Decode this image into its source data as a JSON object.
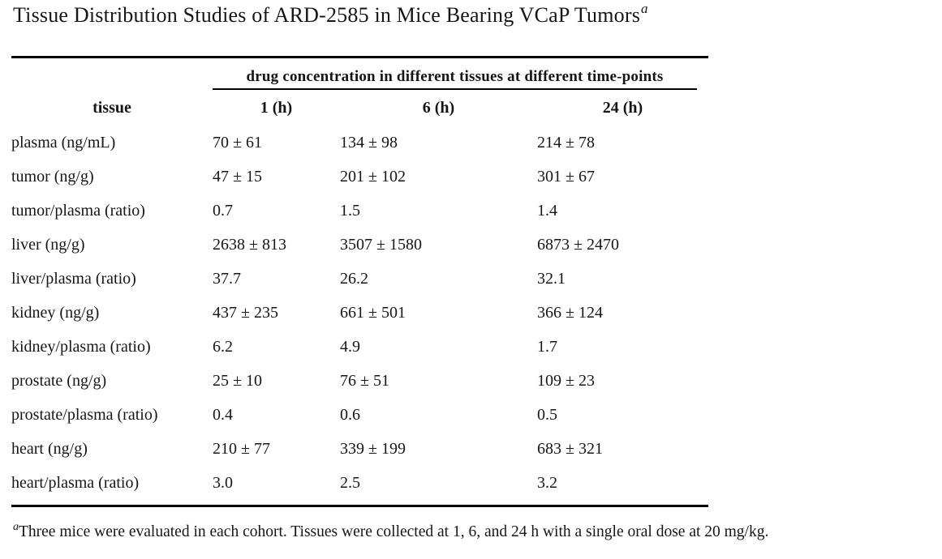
{
  "page": {
    "background": "#ffffff",
    "text_color": "#161616",
    "rule_color": "#000000"
  },
  "title": {
    "text": "Tissue Distribution Studies of ARD-2585 in Mice Bearing VCaP Tumors",
    "footnote_marker": "a"
  },
  "table": {
    "spanning_header": "drug concentration in different tissues at different time-points",
    "columns": [
      "tissue",
      "1 (h)",
      "6 (h)",
      "24 (h)"
    ],
    "rows": [
      {
        "tissue": "plasma (ng/mL)",
        "h1": "70 ± 61",
        "h6": "134 ± 98",
        "h24": "214 ± 78"
      },
      {
        "tissue": "tumor (ng/g)",
        "h1": "47 ± 15",
        "h6": "201 ± 102",
        "h24": "301 ± 67"
      },
      {
        "tissue": "tumor/plasma (ratio)",
        "h1": "0.7",
        "h6": "1.5",
        "h24": "1.4"
      },
      {
        "tissue": "liver (ng/g)",
        "h1": "2638 ± 813",
        "h6": "3507 ± 1580",
        "h24": "6873 ± 2470"
      },
      {
        "tissue": "liver/plasma (ratio)",
        "h1": "37.7",
        "h6": "26.2",
        "h24": "32.1"
      },
      {
        "tissue": "kidney (ng/g)",
        "h1": "437 ± 235",
        "h6": "661 ± 501",
        "h24": "366 ± 124"
      },
      {
        "tissue": "kidney/plasma (ratio)",
        "h1": "6.2",
        "h6": "4.9",
        "h24": "1.7"
      },
      {
        "tissue": "prostate (ng/g)",
        "h1": "25 ± 10",
        "h6": "76 ± 51",
        "h24": "109 ± 23"
      },
      {
        "tissue": "prostate/plasma (ratio)",
        "h1": "0.4",
        "h6": "0.6",
        "h24": "0.5"
      },
      {
        "tissue": "heart (ng/g)",
        "h1": "210 ± 77",
        "h6": "339 ± 199",
        "h24": "683 ± 321"
      },
      {
        "tissue": "heart/plasma (ratio)",
        "h1": "3.0",
        "h6": "2.5",
        "h24": "3.2"
      }
    ]
  },
  "footnote": {
    "marker": "a",
    "text": "Three mice were evaluated in each cohort. Tissues were collected at 1, 6, and 24 h with a single oral dose at 20 mg/kg."
  },
  "chart_data": {
    "type": "table",
    "title": "Tissue Distribution Studies of ARD-2585 in Mice Bearing VCaP Tumors",
    "group_header": "drug concentration in different tissues at different time-points",
    "columns": [
      "tissue",
      "1 (h)",
      "6 (h)",
      "24 (h)"
    ],
    "rows": [
      [
        "plasma (ng/mL)",
        "70 ± 61",
        "134 ± 98",
        "214 ± 78"
      ],
      [
        "tumor (ng/g)",
        "47 ± 15",
        "201 ± 102",
        "301 ± 67"
      ],
      [
        "tumor/plasma (ratio)",
        "0.7",
        "1.5",
        "1.4"
      ],
      [
        "liver (ng/g)",
        "2638 ± 813",
        "3507 ± 1580",
        "6873 ± 2470"
      ],
      [
        "liver/plasma (ratio)",
        "37.7",
        "26.2",
        "32.1"
      ],
      [
        "kidney (ng/g)",
        "437 ± 235",
        "661 ± 501",
        "366 ± 124"
      ],
      [
        "kidney/plasma (ratio)",
        "6.2",
        "4.9",
        "1.7"
      ],
      [
        "prostate (ng/g)",
        "25 ± 10",
        "76 ± 51",
        "109 ± 23"
      ],
      [
        "prostate/plasma (ratio)",
        "0.4",
        "0.6",
        "0.5"
      ],
      [
        "heart (ng/g)",
        "210 ± 77",
        "339 ± 199",
        "683 ± 321"
      ],
      [
        "heart/plasma (ratio)",
        "3.0",
        "2.5",
        "3.2"
      ]
    ],
    "footnote": "a: Three mice were evaluated in each cohort. Tissues were collected at 1, 6, and 24 h with a single oral dose at 20 mg/kg."
  }
}
